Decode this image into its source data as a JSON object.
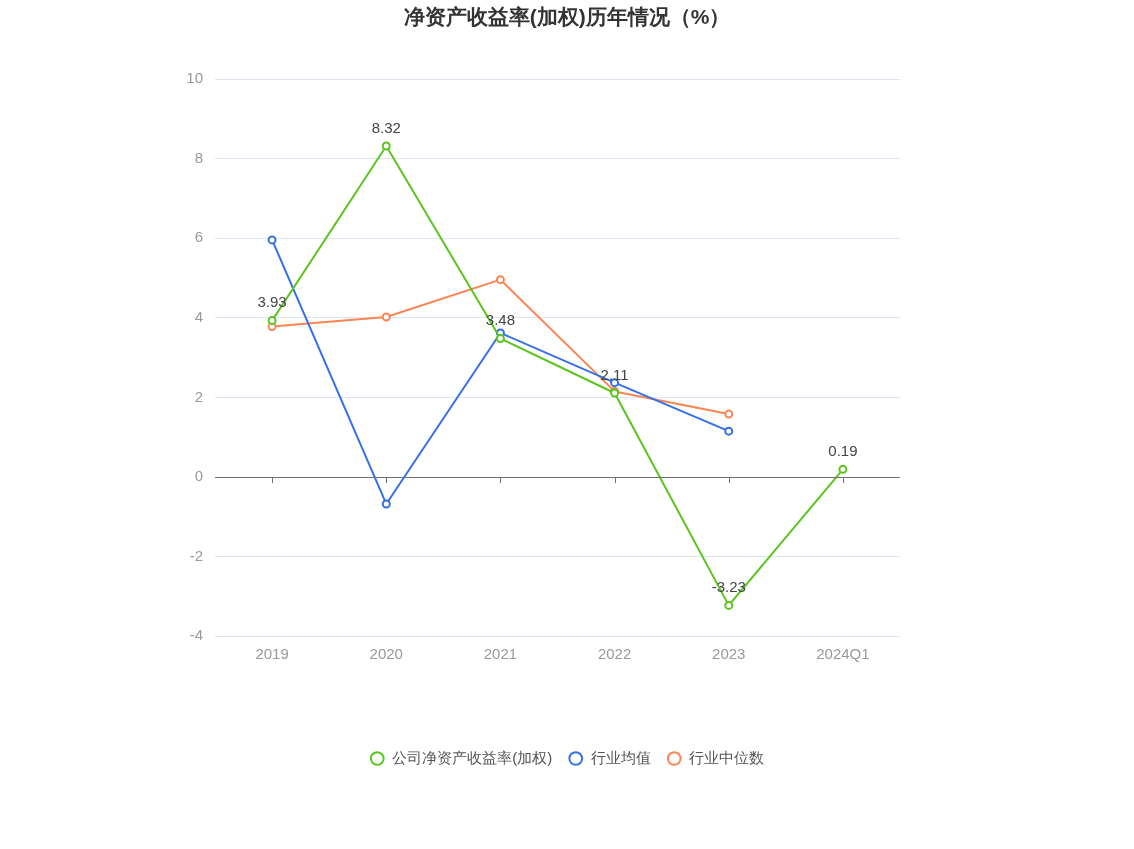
{
  "chart_data": {
    "type": "line",
    "title": "净资产收益率(加权)历年情况（%）",
    "categories": [
      "2019",
      "2020",
      "2021",
      "2022",
      "2023",
      "2024Q1"
    ],
    "series": [
      {
        "name": "公司净资产收益率(加权)",
        "color": "#5bc41f",
        "values": [
          3.93,
          8.32,
          3.48,
          2.11,
          -3.23,
          0.19
        ],
        "value_labels": [
          "3.93",
          "8.32",
          "3.48",
          "2.11",
          "-3.23",
          "0.19"
        ]
      },
      {
        "name": "行业均值",
        "color": "#3470e6",
        "values": [
          5.96,
          -0.68,
          3.62,
          2.37,
          1.15,
          null
        ]
      },
      {
        "name": "行业中位数",
        "color": "#fb8452",
        "values": [
          3.78,
          4.02,
          4.96,
          2.15,
          1.58,
          null
        ]
      }
    ],
    "ylim": [
      -4,
      10
    ],
    "yticks": [
      -4,
      -2,
      0,
      2,
      4,
      6,
      8,
      10
    ],
    "grid": "y",
    "legend": "bottom",
    "marker": "circle"
  }
}
